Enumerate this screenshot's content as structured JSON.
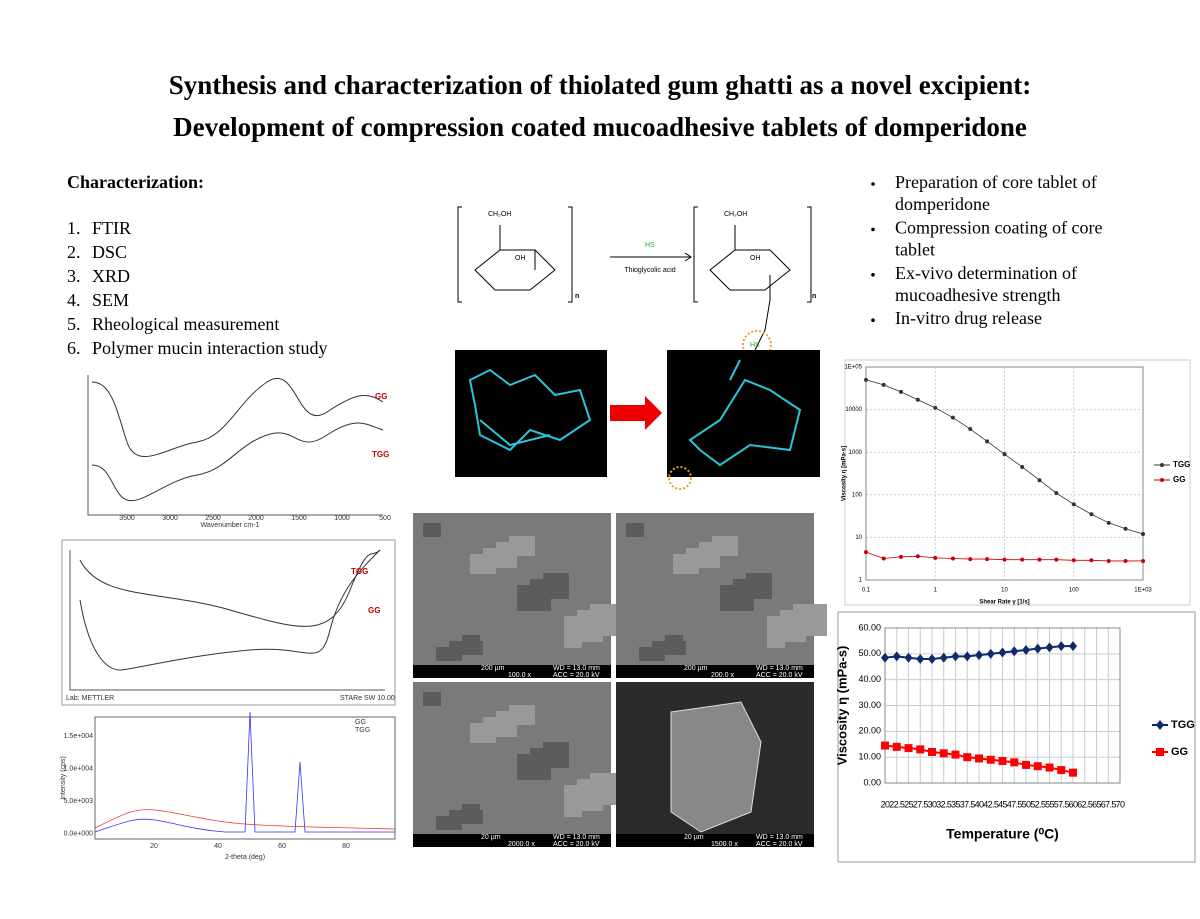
{
  "header": {
    "title": [
      "Synthesis and characterization of thiolated gum ghatti as a novel excipient:",
      "Development of compression coated mucoadhesive tablets of domperidone"
    ]
  },
  "characterization": {
    "heading": "Characterization:",
    "items": [
      {
        "number": "1.",
        "text": "FTIR"
      },
      {
        "number": "2.",
        "text": "DSC"
      },
      {
        "number": "3.",
        "text": "XRD"
      },
      {
        "number": "4.",
        "text": "SEM"
      },
      {
        "number": "5.",
        "text": "Rheological measurement"
      },
      {
        "number": "6.",
        "text": "Polymer mucin interaction study"
      }
    ]
  },
  "steps": [
    "Preparation of core tablet of domperidone",
    "Compression coating of core tablet",
    "Ex-vivo determination of mucoadhesive strength",
    "In-vitro drug release"
  ],
  "scheme": {
    "reagent": "Thioglycolic acid",
    "group": "CH₂OH",
    "hydroxyl": "OH",
    "thiol": "HS",
    "repeat": "n"
  },
  "ftir": {
    "labels": [
      "GG",
      "TGG"
    ],
    "xlabel": "Wavenumber cm-1",
    "xticks": [
      "3500",
      "3000",
      "2500",
      "2000",
      "1500",
      "1000",
      "500"
    ]
  },
  "dsc": {
    "labels": [
      "TGG",
      "GG"
    ],
    "footer": [
      "Lab: METTLER",
      "STARe SW 10.00"
    ]
  },
  "xrd": {
    "legend": [
      "GG",
      "TGG"
    ],
    "xlabel": "2-theta (deg)",
    "ylabel": "Intensity (cps)",
    "yticks": [
      "1.5e+004",
      "1.0e+004",
      "5.0e+003",
      "0.0e+000"
    ],
    "xticks": [
      "20",
      "40",
      "60",
      "80"
    ]
  },
  "sem": [
    {
      "scale": "200 µm",
      "mag": "100.0 x",
      "wd": "WD = 13.0 mm",
      "acc": "ACC = 20.0 kV"
    },
    {
      "scale": "200 µm",
      "mag": "200.0 x",
      "wd": "WD = 13.0 mm",
      "acc": "ACC = 20.0 kV"
    },
    {
      "scale": "20 µm",
      "mag": "2000.0 x",
      "wd": "WD = 13.0 mm",
      "acc": "ACC = 20.0 kV"
    },
    {
      "scale": "20 µm",
      "mag": "1500.0 x",
      "wd": "WD = 13.0 mm",
      "acc": "ACC = 20.0 kV"
    }
  ],
  "chart_data": [
    {
      "type": "line",
      "xlabel": "Shear Rate γ [1/s]",
      "ylabel": "Viscosity η [mPa·s]",
      "xlog": true,
      "ylog": true,
      "x": [
        0.1,
        0.18,
        0.32,
        0.56,
        1,
        1.8,
        3.2,
        5.6,
        10,
        18,
        32,
        56,
        100,
        180,
        320,
        560,
        1000
      ],
      "xlim": [
        0.1,
        1000
      ],
      "xticks": [
        0.1,
        1,
        10,
        100,
        {
          "value": 1000,
          "label": "1E+03"
        }
      ],
      "ylim": [
        1,
        100000
      ],
      "yticks": [
        1,
        10,
        100,
        1000,
        10000,
        {
          "value": 100000,
          "label": "1E+05"
        }
      ],
      "grid": true,
      "series": [
        {
          "name": "TGG",
          "color": "#333333",
          "marker": "circle",
          "values": [
            50000,
            38000,
            26000,
            17000,
            11000,
            6500,
            3500,
            1800,
            900,
            450,
            220,
            110,
            60,
            35,
            22,
            16,
            12
          ]
        },
        {
          "name": "GG",
          "color": "#cc0000",
          "marker": "circle",
          "values": [
            4.5,
            3.2,
            3.5,
            3.6,
            3.3,
            3.2,
            3.1,
            3.1,
            3.0,
            3.0,
            3.0,
            3.0,
            2.9,
            2.9,
            2.8,
            2.8,
            2.8
          ]
        }
      ]
    },
    {
      "type": "line",
      "xlabel": "Temperature (⁰C)",
      "ylabel": "Viscosity η (mPa-s)",
      "xlog": false,
      "ylog": false,
      "x": [
        20,
        22.5,
        25,
        27.5,
        30,
        32.5,
        35,
        37.5,
        40,
        42.5,
        45,
        47.5,
        50,
        52.5,
        55,
        57.5,
        60
      ],
      "xlim": [
        20,
        70
      ],
      "xticks": [
        20,
        22.5,
        25,
        27.5,
        30,
        32.5,
        35,
        37.5,
        40,
        42.5,
        45,
        47.5,
        50,
        52.5,
        55,
        57.5,
        60,
        62.5,
        65,
        67.5,
        70
      ],
      "ylim": [
        0,
        60
      ],
      "yticks": [
        {
          "value": 0,
          "label": "0.00"
        },
        {
          "value": 10,
          "label": "10.00"
        },
        {
          "value": 20,
          "label": "20.00"
        },
        {
          "value": 30,
          "label": "30.00"
        },
        {
          "value": 40,
          "label": "40.00"
        },
        {
          "value": 50,
          "label": "50.00"
        },
        {
          "value": 60,
          "label": "60.00"
        }
      ],
      "grid": true,
      "series": [
        {
          "name": "TGG",
          "color": "#0f2a6b",
          "marker": "diamond",
          "values": [
            48.5,
            49,
            48.5,
            48,
            48,
            48.5,
            49,
            49,
            49.5,
            50,
            50.5,
            51,
            51.5,
            52,
            52.5,
            53,
            53
          ]
        },
        {
          "name": "GG",
          "color": "#ff0000",
          "marker": "square",
          "values": [
            14.5,
            14,
            13.5,
            13,
            12,
            11.5,
            11,
            10,
            9.5,
            9,
            8.5,
            8,
            7,
            6.5,
            6,
            5,
            4
          ]
        }
      ]
    }
  ]
}
